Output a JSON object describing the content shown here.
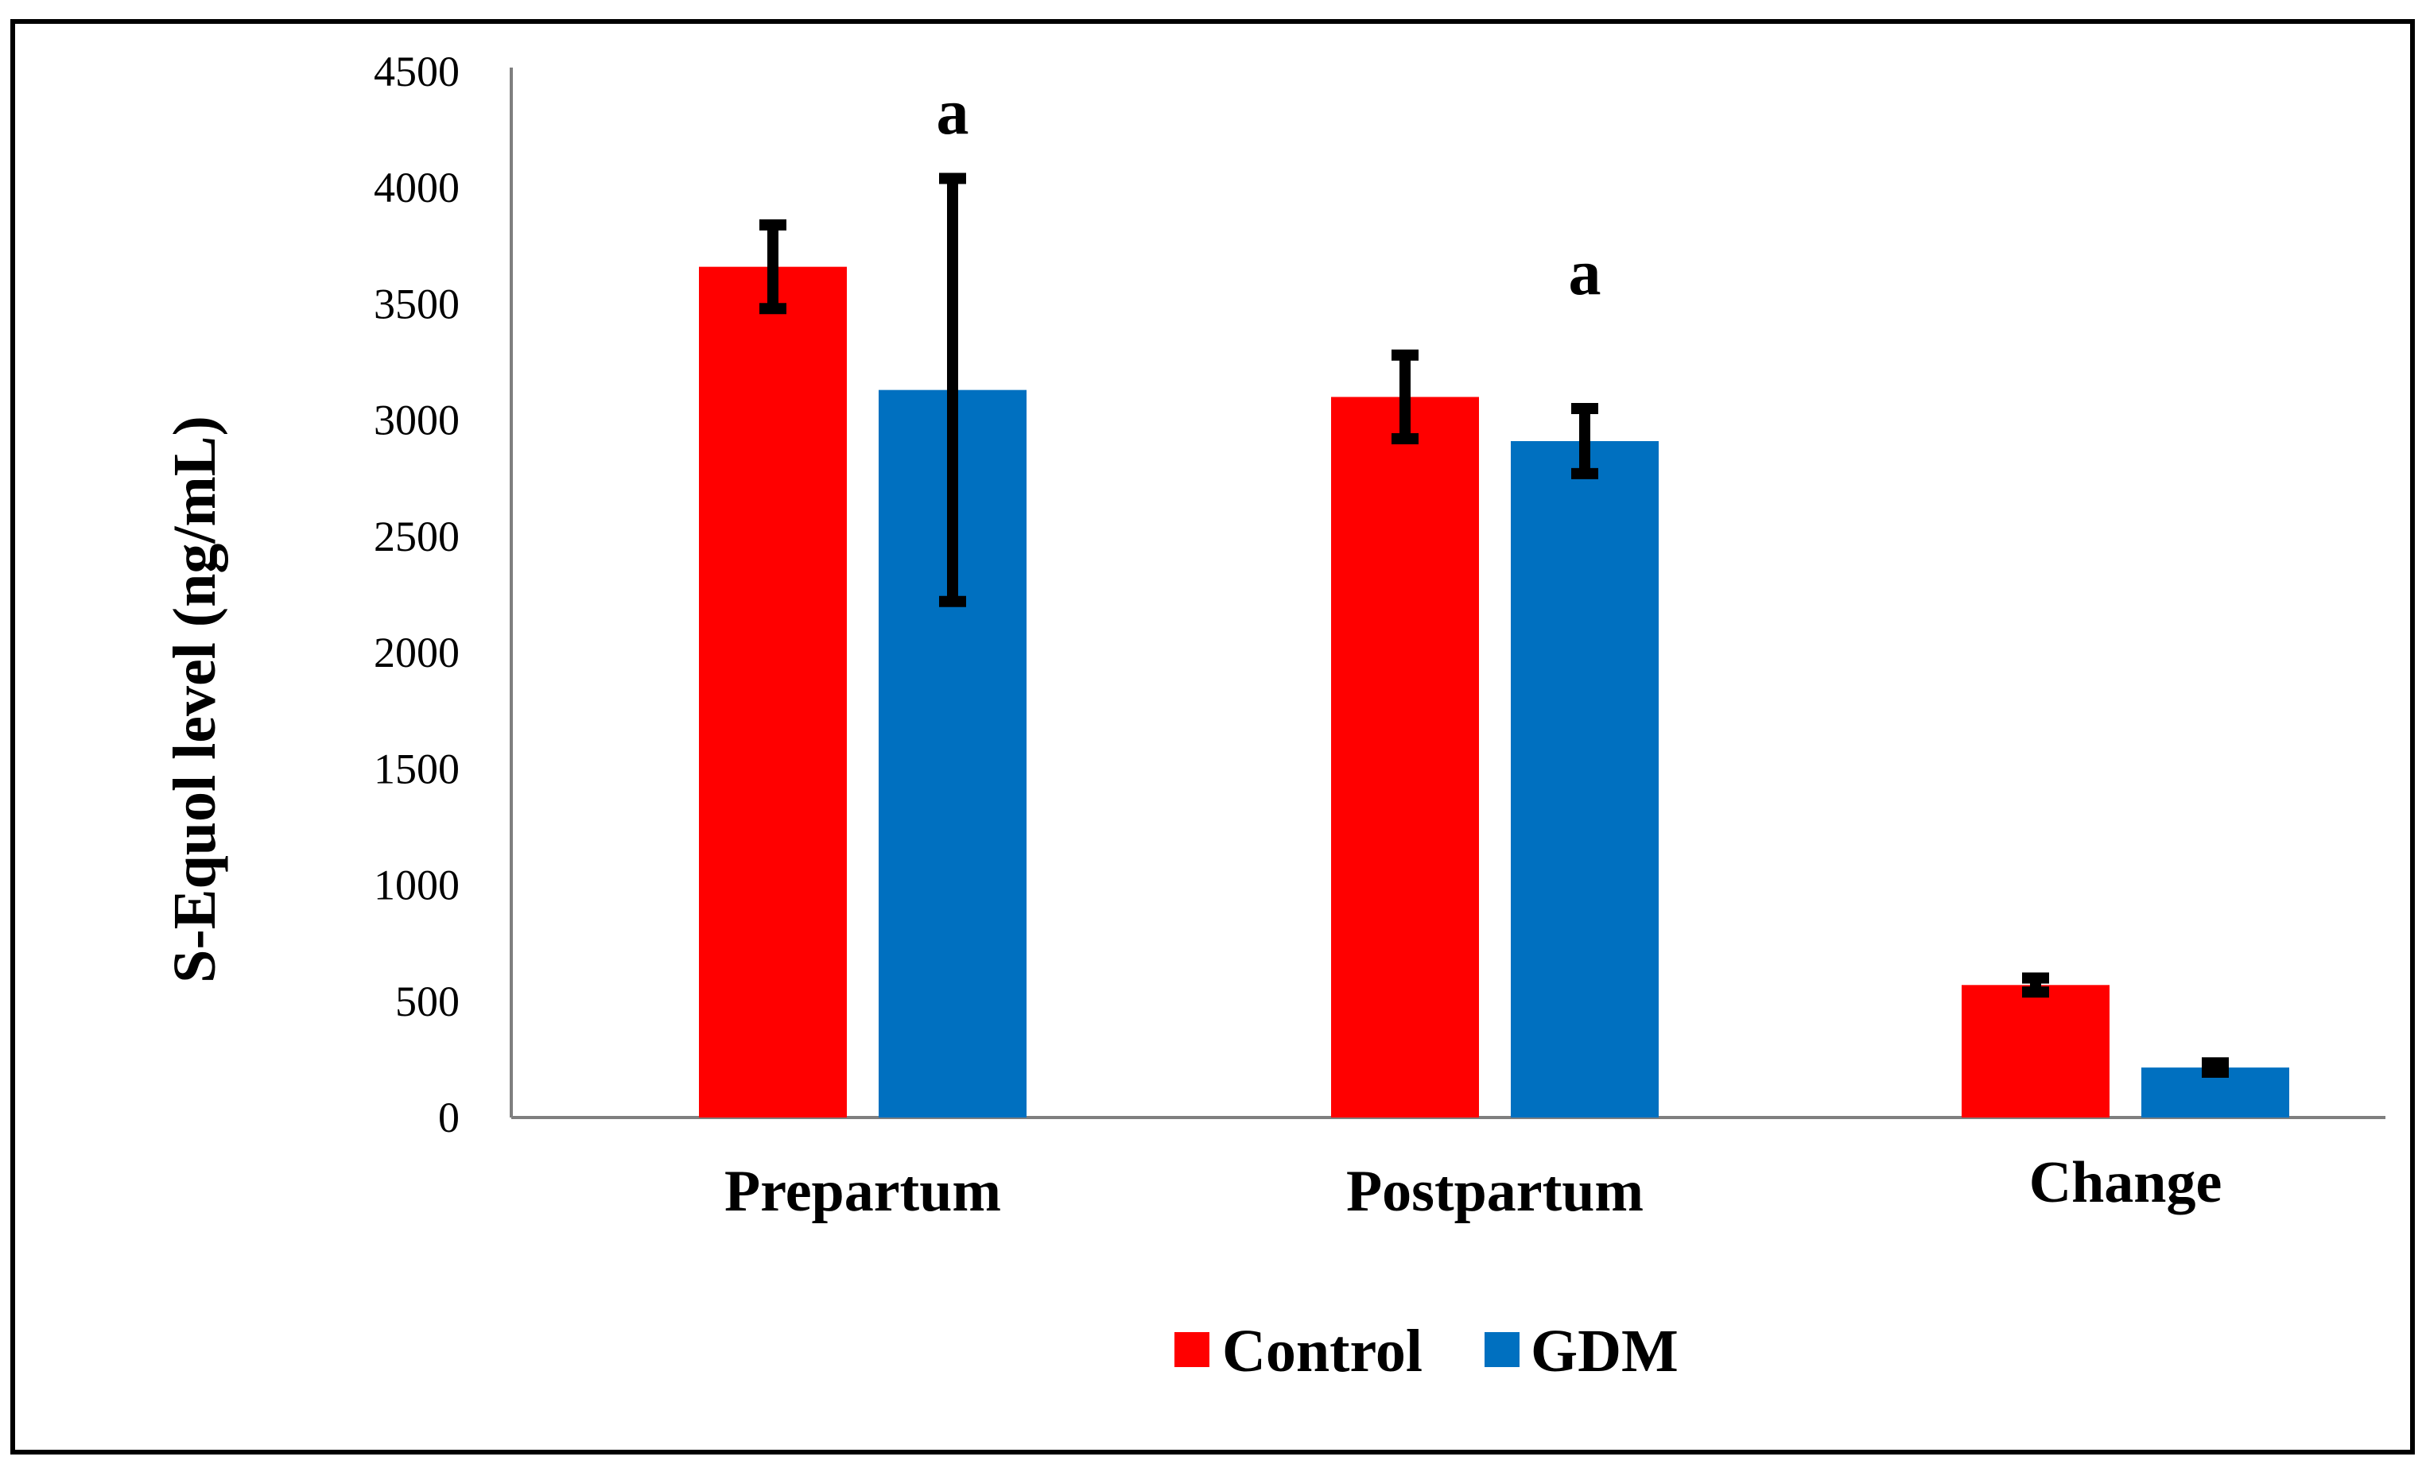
{
  "chart_data": {
    "type": "bar",
    "title": "",
    "xlabel": "",
    "ylabel": "S-Equol level (ng/mL)",
    "ylim": [
      0,
      4500
    ],
    "yticks": [
      0,
      500,
      1000,
      1500,
      2000,
      2500,
      3000,
      3500,
      4000,
      4500
    ],
    "grid": false,
    "legend_position": "bottom",
    "categories": [
      "Prepartum",
      "Postpartum",
      "Change"
    ],
    "series": [
      {
        "name": "Control",
        "color": "#ff0000",
        "values": [
          3660,
          3100,
          570
        ],
        "errors": [
          180,
          180,
          30
        ]
      },
      {
        "name": "GDM",
        "color": "#0070c0",
        "values": [
          3130,
          2910,
          215
        ],
        "errors": [
          910,
          140,
          20
        ]
      }
    ],
    "annotations": [
      {
        "text": "a",
        "category": 0,
        "series": 1,
        "value": 4370
      },
      {
        "text": "a",
        "category": 1,
        "series": 1,
        "value": 3680
      }
    ]
  }
}
